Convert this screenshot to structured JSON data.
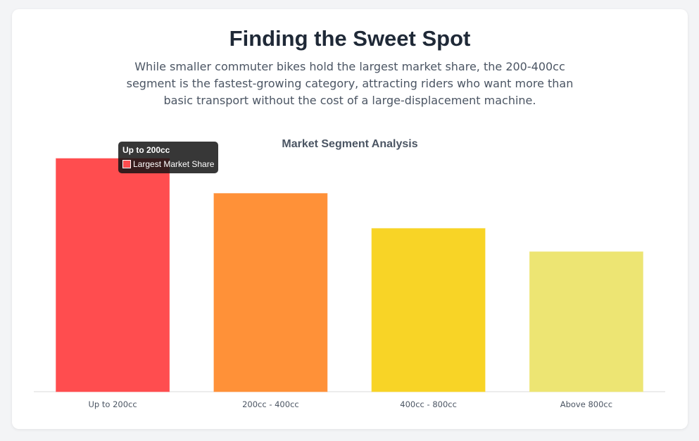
{
  "header": {
    "title": "Finding the Sweet Spot",
    "subtitle": "While smaller commuter bikes hold the largest market share, the 200-400cc segment is the fastest-growing category, attracting riders who want more than basic transport without the cost of a large-displacement machine."
  },
  "chart_data": {
    "type": "bar",
    "title": "Market Segment Analysis",
    "categories": [
      "Up to 200cc",
      "200cc - 400cc",
      "400cc - 800cc",
      "Above 800cc"
    ],
    "values": [
      100,
      85,
      70,
      60
    ],
    "colors": [
      "#ff4d4f",
      "#ff9138",
      "#f8d426",
      "#ede573"
    ],
    "ylim": [
      0,
      100
    ],
    "grid": false,
    "legend": "none"
  },
  "tooltip": {
    "title": "Up to 200cc",
    "label": "Largest Market Share",
    "color": "#ff4d4f"
  }
}
